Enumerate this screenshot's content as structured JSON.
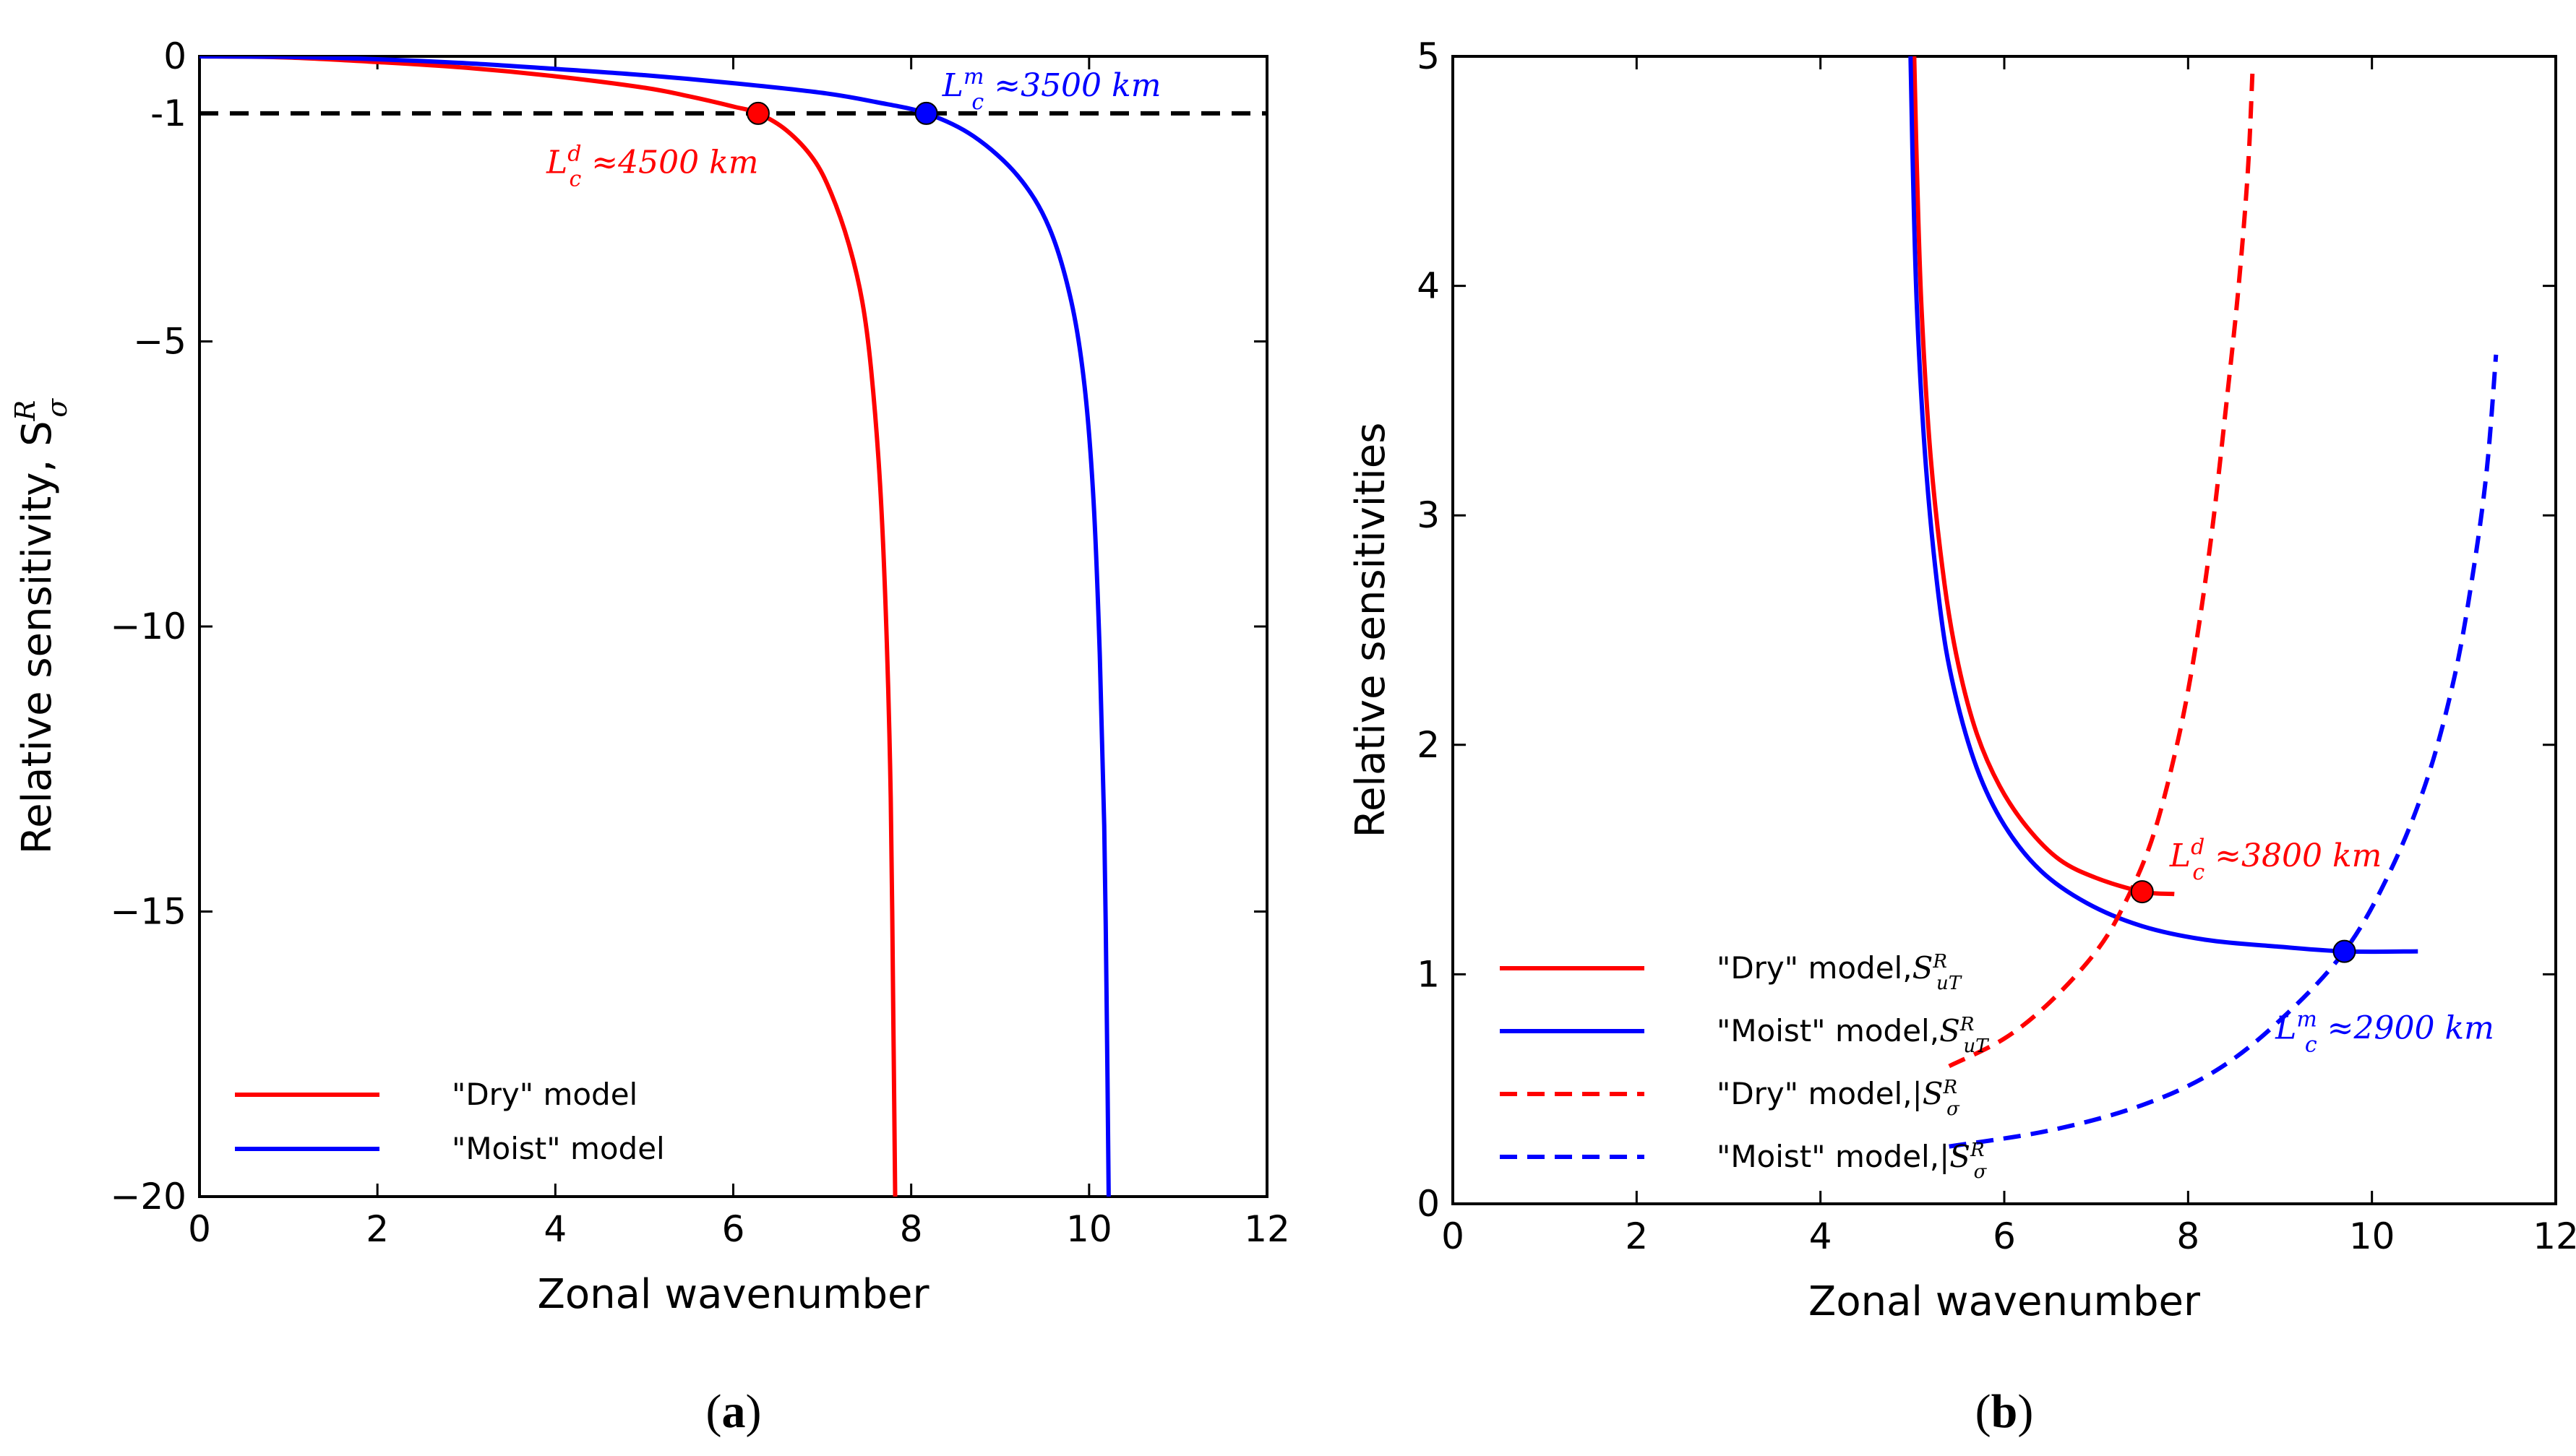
{
  "chart_data": [
    {
      "panel": "(a)",
      "panel_letter": "a",
      "type": "line",
      "xlabel": "Zonal wavenumber",
      "ylabel": "Relative sensitivity, S",
      "ylabel_sup": "R",
      "ylabel_sub": "σ",
      "xlim": [
        0,
        12
      ],
      "ylim": [
        -20,
        0
      ],
      "xticks": [
        0,
        2,
        4,
        6,
        8,
        10,
        12
      ],
      "yticks": [
        0,
        -5,
        -10,
        -15,
        -20
      ],
      "extra_ytick": {
        "value": -1,
        "label": "-1"
      },
      "hline": {
        "y": -1,
        "style": "dashed",
        "color": "#000000"
      },
      "series": [
        {
          "name": "\"Dry\" model",
          "color": "#ff0000",
          "style": "solid",
          "legend": true,
          "x": [
            0,
            1,
            2,
            3,
            4,
            5,
            5.5,
            6.0,
            6.28,
            6.6,
            6.9,
            7.1,
            7.3,
            7.45,
            7.55,
            7.65,
            7.72,
            7.77,
            7.8,
            7.82
          ],
          "y": [
            0,
            -0.02,
            -0.1,
            -0.2,
            -0.35,
            -0.55,
            -0.7,
            -0.88,
            -1.0,
            -1.3,
            -1.8,
            -2.4,
            -3.3,
            -4.3,
            -5.5,
            -7.5,
            -10,
            -13,
            -17,
            -20
          ]
        },
        {
          "name": "\"Moist\" model",
          "color": "#0000ff",
          "style": "solid",
          "legend": true,
          "x": [
            0,
            1,
            2,
            3,
            4,
            5,
            6,
            7,
            7.6,
            8.17,
            8.7,
            9.2,
            9.55,
            9.8,
            9.95,
            10.05,
            10.12,
            10.17,
            10.2,
            10.22
          ],
          "y": [
            0,
            -0.01,
            -0.05,
            -0.12,
            -0.22,
            -0.33,
            -0.47,
            -0.64,
            -0.8,
            -1.0,
            -1.4,
            -2.1,
            -3.0,
            -4.3,
            -5.8,
            -7.8,
            -10.5,
            -13.5,
            -17,
            -20
          ]
        }
      ],
      "markers": [
        {
          "x": 6.28,
          "y": -1,
          "color": "#ff0000"
        },
        {
          "x": 8.17,
          "y": -1,
          "color": "#0000ff"
        }
      ],
      "annotations": [
        {
          "sym": "L",
          "sub": "c",
          "sup": "d",
          "text": " ≈4500 km",
          "color": "#ff0000",
          "x": 3.9,
          "y": -2.05
        },
        {
          "sym": "L",
          "sub": "c",
          "sup": "m",
          "text": " ≈3500 km",
          "color": "#0000ff",
          "x": 8.35,
          "y": -0.7
        }
      ],
      "legend_position": "lower-left"
    },
    {
      "panel": "(b)",
      "panel_letter": "b",
      "type": "line",
      "xlabel": "Zonal wavenumber",
      "ylabel": "Relative sensitivities",
      "xlim": [
        0,
        12
      ],
      "ylim": [
        0,
        5
      ],
      "xticks": [
        0,
        2,
        4,
        6,
        8,
        10,
        12
      ],
      "yticks": [
        0,
        1,
        2,
        3,
        4,
        5
      ],
      "series": [
        {
          "name": "\"Dry\" model,",
          "sym": "S",
          "sub": "u",
          "subsub": "T",
          "color": "#ff0000",
          "style": "solid",
          "x": [
            5.02,
            5.05,
            5.1,
            5.2,
            5.35,
            5.5,
            5.7,
            5.95,
            6.25,
            6.6,
            7.0,
            7.5,
            7.85
          ],
          "y": [
            5.0,
            4.5,
            3.9,
            3.25,
            2.7,
            2.35,
            2.05,
            1.82,
            1.64,
            1.5,
            1.42,
            1.36,
            1.35
          ]
        },
        {
          "name": "\"Moist\" model,",
          "sym": "S",
          "sub": "u",
          "subsub": "T",
          "color": "#0000ff",
          "style": "solid",
          "x": [
            4.98,
            5.0,
            5.05,
            5.15,
            5.3,
            5.45,
            5.7,
            6.0,
            6.4,
            6.9,
            7.5,
            8.2,
            9.0,
            9.7,
            10.5
          ],
          "y": [
            5.0,
            4.6,
            3.9,
            3.2,
            2.6,
            2.25,
            1.9,
            1.65,
            1.45,
            1.31,
            1.21,
            1.15,
            1.12,
            1.1,
            1.1
          ]
        },
        {
          "name": "\"Dry\" model,",
          "sym": "|S",
          "sub": "σ",
          "sup": "R",
          "color": "#ff0000",
          "style": "dashed",
          "x": [
            5.4,
            6.0,
            6.5,
            7.0,
            7.3,
            7.6,
            7.85,
            8.05,
            8.25,
            8.42,
            8.55,
            8.65,
            8.7
          ],
          "y": [
            0.6,
            0.72,
            0.88,
            1.1,
            1.3,
            1.58,
            1.95,
            2.35,
            2.9,
            3.5,
            4.0,
            4.5,
            4.93
          ]
        },
        {
          "name": "\"Moist\" model,",
          "sym": "|S",
          "sub": "σ",
          "sup": "R",
          "color": "#0000ff",
          "style": "dashed",
          "x": [
            5.4,
            6.5,
            7.5,
            8.3,
            9.0,
            9.7,
            10.2,
            10.6,
            10.9,
            11.1,
            11.25,
            11.35
          ],
          "y": [
            0.25,
            0.32,
            0.43,
            0.58,
            0.8,
            1.1,
            1.45,
            1.85,
            2.3,
            2.75,
            3.2,
            3.7
          ]
        }
      ],
      "markers": [
        {
          "x": 7.5,
          "y": 1.36,
          "color": "#ff0000"
        },
        {
          "x": 9.7,
          "y": 1.1,
          "color": "#0000ff"
        }
      ],
      "annotations": [
        {
          "sym": "L",
          "sub": "c",
          "sup": "d",
          "text": " ≈3800 km",
          "color": "#ff0000",
          "x": 7.8,
          "y": 1.47
        },
        {
          "sym": "L",
          "sub": "c",
          "sup": "m",
          "text": " ≈2900 km",
          "color": "#0000ff",
          "x": 8.95,
          "y": 0.72
        }
      ],
      "legend_position": "lower-left"
    }
  ]
}
